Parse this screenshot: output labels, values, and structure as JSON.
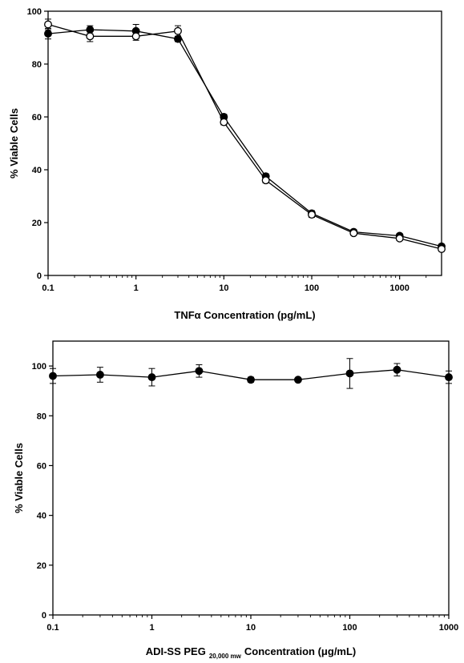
{
  "chart_data": [
    {
      "type": "line",
      "xscale": "log",
      "xlabel_main": "TNFα Concentration (pg/mL)",
      "xlabel_sub": "",
      "xlabel_tail": "",
      "ylabel": "% Viable Cells",
      "xlim": [
        0.1,
        3000
      ],
      "ylim": [
        0,
        100
      ],
      "xticks": [
        0.1,
        1,
        10,
        100,
        1000
      ],
      "xtick_labels": [
        "0.1",
        "1",
        "10",
        "100",
        "1000"
      ],
      "yticks": [
        0,
        20,
        40,
        60,
        80,
        100
      ],
      "ytick_labels": [
        "0",
        "20",
        "40",
        "60",
        "80",
        "100"
      ],
      "x": [
        0.1,
        0.3,
        1,
        3,
        10,
        30,
        100,
        300,
        1000,
        3000
      ],
      "series": [
        {
          "marker": "filled",
          "values": [
            91.5,
            93,
            92.5,
            89.5,
            60,
            37.5,
            23.5,
            16.5,
            15,
            11
          ],
          "errors": [
            2,
            1.5,
            2.5,
            1,
            1,
            1,
            1,
            0.8,
            0.8,
            0.8
          ]
        },
        {
          "marker": "open",
          "values": [
            95,
            90.5,
            90.5,
            92.5,
            58,
            36,
            23,
            16,
            14,
            10
          ],
          "errors": [
            2,
            2,
            1.5,
            2,
            1,
            1,
            1,
            0.8,
            0.8,
            0.8
          ]
        }
      ]
    },
    {
      "type": "line",
      "xscale": "log",
      "xlabel_main": "ADI-SS PEG",
      "xlabel_sub": "20,000 mw",
      "xlabel_tail": "Concentration (μg/mL)",
      "ylabel": "% Viable Cells",
      "xlim": [
        0.1,
        1000
      ],
      "ylim": [
        0,
        110
      ],
      "xticks": [
        0.1,
        1,
        10,
        100,
        1000
      ],
      "xtick_labels": [
        "0.1",
        "1",
        "10",
        "100",
        "1000"
      ],
      "yticks": [
        0,
        20,
        40,
        60,
        80,
        100
      ],
      "ytick_labels": [
        "0",
        "20",
        "40",
        "60",
        "80",
        "100"
      ],
      "x": [
        0.1,
        0.3,
        1,
        3,
        10,
        30,
        100,
        300,
        1000
      ],
      "series": [
        {
          "marker": "filled",
          "values": [
            96,
            96.5,
            95.5,
            98,
            94.5,
            94.5,
            97,
            98.5,
            95.5
          ],
          "errors": [
            3,
            3,
            3.5,
            2.5,
            1,
            0.5,
            6,
            2.5,
            2.5
          ]
        }
      ]
    }
  ]
}
